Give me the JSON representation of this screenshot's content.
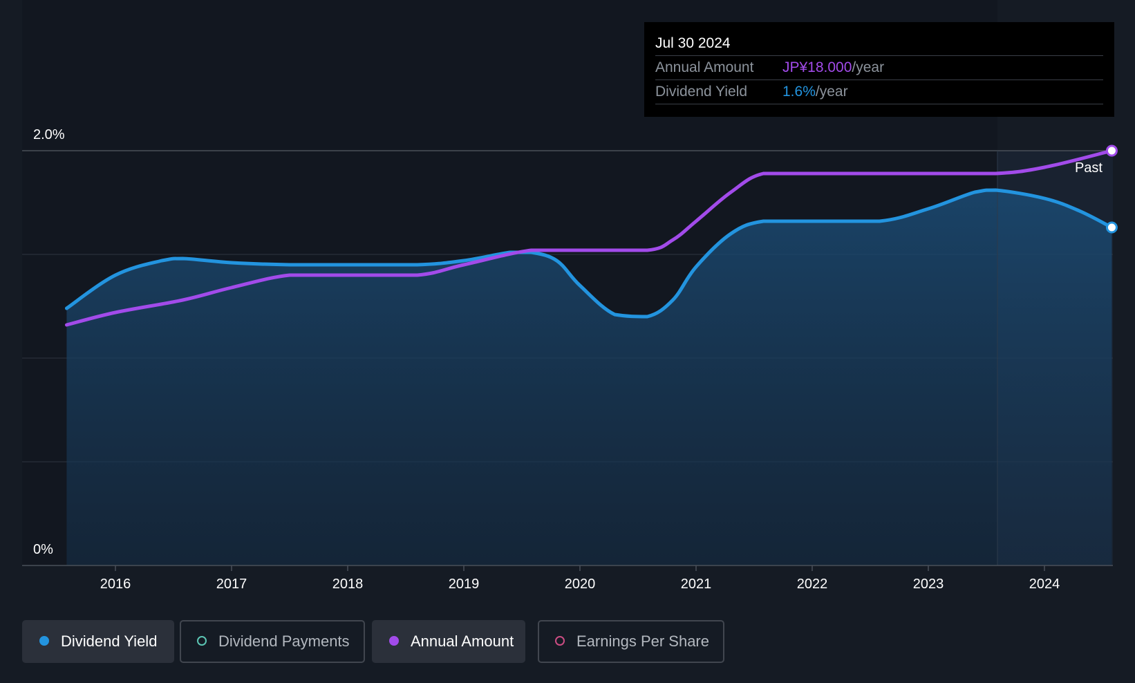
{
  "chart_data": {
    "type": "line",
    "title": "",
    "ylabel": "",
    "xlabel": "",
    "ylim": [
      0,
      2.0
    ],
    "y_tick_labels": [
      "0%",
      "2.0%"
    ],
    "x_tick_labels": [
      "2016",
      "2017",
      "2018",
      "2019",
      "2020",
      "2021",
      "2022",
      "2023",
      "2024"
    ],
    "x_range": [
      2015.3,
      2024.58
    ],
    "forecast_marker_label": "Past",
    "series": [
      {
        "name": "Dividend Yield",
        "color": "#2394df",
        "fill": true,
        "points": [
          [
            2015.58,
            1.24
          ],
          [
            2016.0,
            1.4
          ],
          [
            2016.4,
            1.47
          ],
          [
            2016.58,
            1.48
          ],
          [
            2017.0,
            1.46
          ],
          [
            2017.5,
            1.45
          ],
          [
            2018.0,
            1.45
          ],
          [
            2018.6,
            1.45
          ],
          [
            2019.0,
            1.47
          ],
          [
            2019.4,
            1.51
          ],
          [
            2019.58,
            1.51
          ],
          [
            2019.8,
            1.47
          ],
          [
            2020.0,
            1.35
          ],
          [
            2020.3,
            1.21
          ],
          [
            2020.58,
            1.2
          ],
          [
            2020.8,
            1.28
          ],
          [
            2021.0,
            1.44
          ],
          [
            2021.3,
            1.6
          ],
          [
            2021.58,
            1.66
          ],
          [
            2022.0,
            1.66
          ],
          [
            2022.58,
            1.66
          ],
          [
            2023.0,
            1.72
          ],
          [
            2023.4,
            1.8
          ],
          [
            2023.58,
            1.81
          ],
          [
            2024.0,
            1.77
          ],
          [
            2024.3,
            1.71
          ],
          [
            2024.58,
            1.63
          ]
        ]
      },
      {
        "name": "Annual Amount",
        "color": "#a24bea",
        "fill": false,
        "points": [
          [
            2015.58,
            1.16
          ],
          [
            2016.0,
            1.22
          ],
          [
            2016.58,
            1.28
          ],
          [
            2017.0,
            1.34
          ],
          [
            2017.5,
            1.4
          ],
          [
            2018.0,
            1.4
          ],
          [
            2018.6,
            1.4
          ],
          [
            2019.0,
            1.45
          ],
          [
            2019.58,
            1.52
          ],
          [
            2020.0,
            1.52
          ],
          [
            2020.58,
            1.52
          ],
          [
            2020.8,
            1.57
          ],
          [
            2021.0,
            1.66
          ],
          [
            2021.3,
            1.8
          ],
          [
            2021.58,
            1.89
          ],
          [
            2022.0,
            1.89
          ],
          [
            2022.58,
            1.89
          ],
          [
            2023.0,
            1.89
          ],
          [
            2023.58,
            1.89
          ],
          [
            2024.0,
            1.92
          ],
          [
            2024.58,
            2.0
          ]
        ]
      }
    ]
  },
  "tooltip": {
    "date": "Jul 30 2024",
    "rows": [
      {
        "label": "Annual Amount",
        "value": "JP¥18.000",
        "unit": "/year",
        "color": "#a24bea"
      },
      {
        "label": "Dividend Yield",
        "value": "1.6%",
        "unit": "/year",
        "color": "#2394df"
      }
    ]
  },
  "legend": [
    {
      "label": "Dividend Yield",
      "color": "#2394df",
      "active": true
    },
    {
      "label": "Dividend Payments",
      "color": "#5cc6b4",
      "active": false
    },
    {
      "label": "Annual Amount",
      "color": "#a24bea",
      "active": true
    },
    {
      "label": "Earnings Per Share",
      "color": "#cc4d83",
      "active": false
    }
  ]
}
